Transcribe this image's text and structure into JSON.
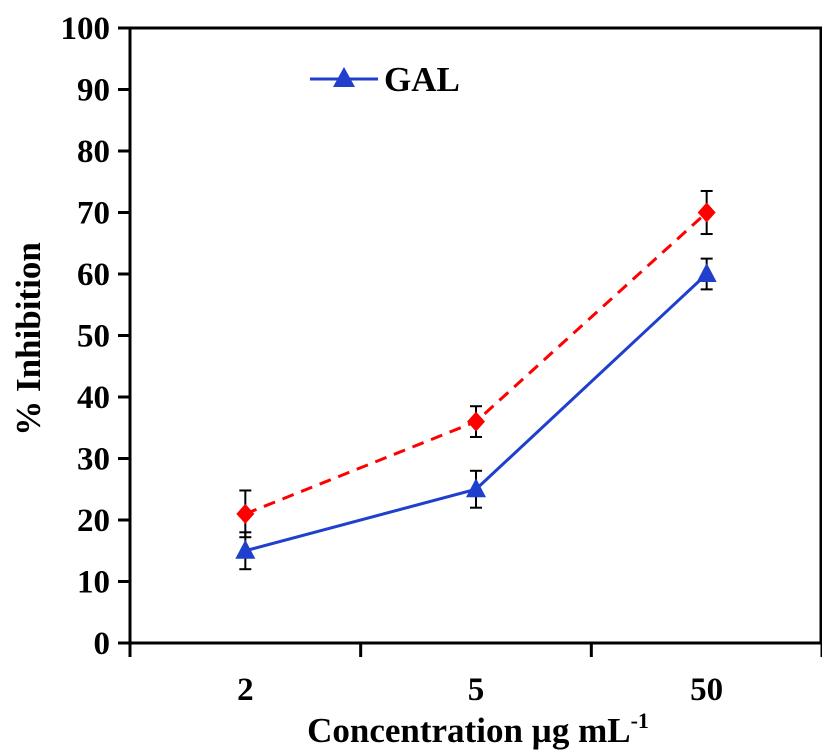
{
  "chart_data": {
    "type": "line",
    "categories": [
      "2",
      "5",
      "50"
    ],
    "xlabel": "Concentration µg mL",
    "xlabel_superscript": "-1",
    "ylabel": "% Inhibition",
    "ylim": [
      0,
      100
    ],
    "yticks": [
      "0",
      "10",
      "20",
      "30",
      "40",
      "50",
      "60",
      "70",
      "80",
      "90",
      "100"
    ],
    "grid": false,
    "legend_position": "top-left",
    "series": [
      {
        "name": "GAL",
        "color": "#1f3fcc",
        "marker": "triangle",
        "line_style": "solid",
        "values": [
          15,
          25,
          60
        ],
        "errors": [
          3,
          3,
          2.5
        ],
        "in_legend": true
      },
      {
        "color": "#ff0000",
        "marker": "diamond",
        "line_style": "dashed",
        "values": [
          21,
          36,
          70
        ],
        "errors": [
          3.8,
          2.5,
          3.5
        ],
        "in_legend": false
      }
    ]
  }
}
